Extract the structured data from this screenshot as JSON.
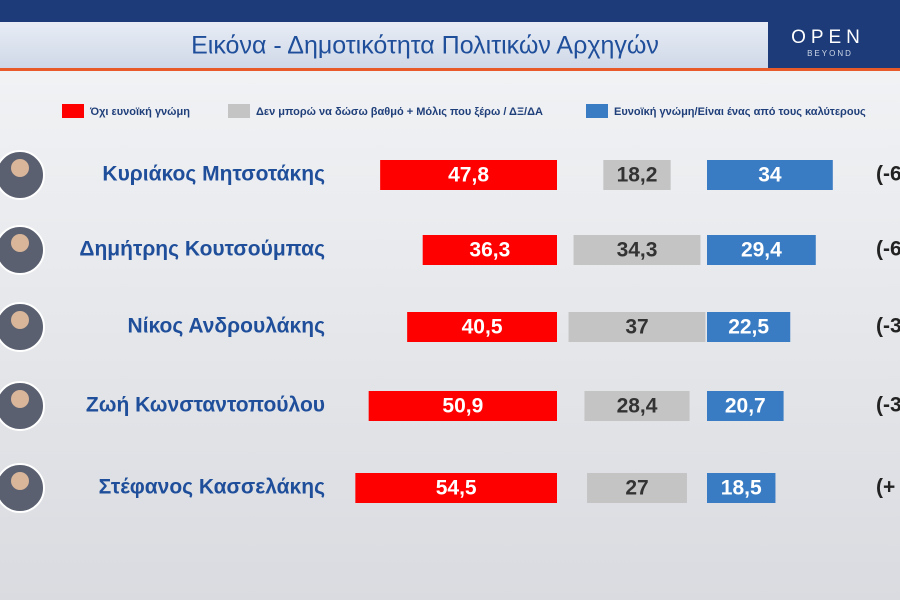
{
  "brand": {
    "name": "OPEN",
    "tagline": "BEYOND"
  },
  "chart_data": {
    "type": "bar",
    "title": "Εικόνα - Δημοτικότητα Πολιτικών Αρχηγών",
    "categories": [
      "Κυριάκος Μητσοτάκης",
      "Δημήτρης Κουτσούμπας",
      "Νίκος Ανδρουλάκης",
      "Ζωή Κωνσταντοπούλου",
      "Στέφανος Κασσελάκης"
    ],
    "series": [
      {
        "name": "Όχι ευνοϊκή γνώμη",
        "color": "#ff0000",
        "values": [
          47.8,
          36.3,
          40.5,
          50.9,
          54.5
        ],
        "value_labels": [
          "47,8",
          "36,3",
          "40,5",
          "50,9",
          "54,5"
        ]
      },
      {
        "name": "Δεν μπορώ να δώσω βαθμό + Μόλις που ξέρω / ΔΞ/ΔΑ",
        "color": "#c4c4c4",
        "values": [
          18.2,
          34.3,
          37,
          28.4,
          27
        ],
        "value_labels": [
          "18,2",
          "34,3",
          "37",
          "28,4",
          "27"
        ]
      },
      {
        "name": "Ευνοϊκή γνώμη/Είναι ένας από τους καλύτερους",
        "color": "#3a7cc3",
        "values": [
          34,
          29.4,
          22.5,
          20.7,
          18.5
        ],
        "value_labels": [
          "34",
          "29,4",
          "22,5",
          "20,7",
          "18,5"
        ]
      }
    ],
    "annotations": [
      "(-6",
      "(-6",
      "(-3",
      "(-3",
      "(+"
    ]
  }
}
